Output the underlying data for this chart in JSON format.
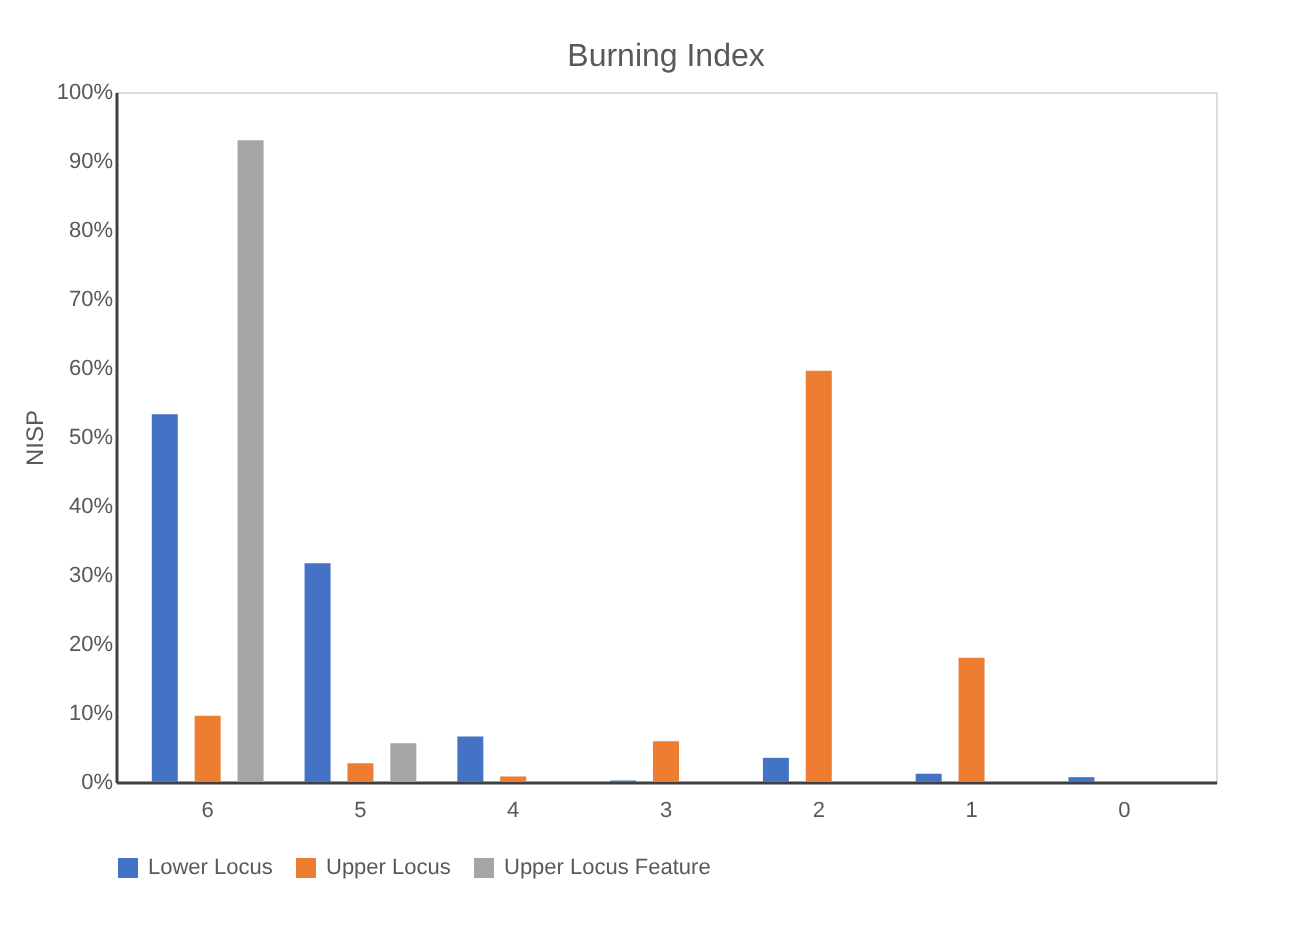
{
  "chart_data": {
    "type": "bar",
    "title": "Burning Index",
    "ylabel": "NISP",
    "categories": [
      "6",
      "5",
      "4",
      "3",
      "2",
      "1",
      "0"
    ],
    "series": [
      {
        "name": "Lower Locus",
        "color": "#4472c4",
        "values": [
          53.3,
          31.7,
          6.6,
          0.2,
          3.5,
          1.2,
          0.7
        ]
      },
      {
        "name": "Upper Locus",
        "color": "#ed7d31",
        "values": [
          9.6,
          2.7,
          0.8,
          5.9,
          59.6,
          18.0,
          0
        ]
      },
      {
        "name": "Upper Locus Feature",
        "color": "#a5a5a5",
        "values": [
          93.0,
          5.6,
          null,
          null,
          0,
          0,
          0
        ]
      }
    ],
    "ylim": [
      0,
      100
    ],
    "yticks": [
      {
        "value": 0,
        "label": "0%"
      },
      {
        "value": 10,
        "label": "10%"
      },
      {
        "value": 20,
        "label": "20%"
      },
      {
        "value": 30,
        "label": "30%"
      },
      {
        "value": 40,
        "label": "40%"
      },
      {
        "value": 50,
        "label": "50%"
      },
      {
        "value": 60,
        "label": "60%"
      },
      {
        "value": 70,
        "label": "70%"
      },
      {
        "value": 80,
        "label": "80%"
      },
      {
        "value": 90,
        "label": "90%"
      },
      {
        "value": 100,
        "label": "100%"
      }
    ],
    "grid": false,
    "legend": "bottom"
  }
}
